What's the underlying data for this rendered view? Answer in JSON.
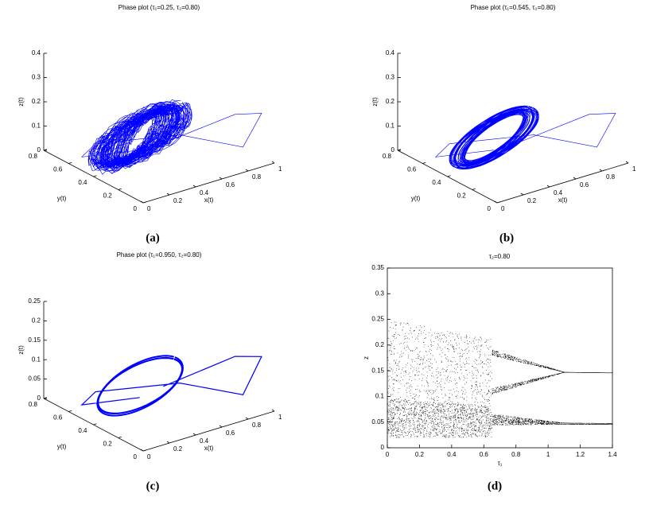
{
  "chart_data": [
    {
      "type": "phase3d",
      "title": "Phase plot (τ₁=0.25, τ₂=0.80)",
      "caption": "(a)",
      "xlabel": "x(t)",
      "ylabel": "y(t)",
      "zlabel": "z(t)",
      "color": "#0000ff",
      "xlim": [
        0,
        1
      ],
      "ylim": [
        0,
        0.8
      ],
      "zlim": [
        0,
        0.4
      ],
      "xticks": [
        0,
        0.2,
        0.4,
        0.6,
        0.8,
        1
      ],
      "yticks": [
        0,
        0.2,
        0.4,
        0.6,
        0.8
      ],
      "zticks": [
        0,
        0.1,
        0.2,
        0.3,
        0.4
      ]
    },
    {
      "type": "phase3d",
      "title": "Phase plot (τ₁=0.545, τ₂=0.80)",
      "caption": "(b)",
      "xlabel": "x(t)",
      "ylabel": "y(t)",
      "zlabel": "z(t)",
      "color": "#0000ff",
      "xlim": [
        0,
        1
      ],
      "ylim": [
        0,
        0.8
      ],
      "zlim": [
        0,
        0.4
      ],
      "xticks": [
        0,
        0.2,
        0.4,
        0.6,
        0.8,
        1
      ],
      "yticks": [
        0,
        0.2,
        0.4,
        0.6,
        0.8
      ],
      "zticks": [
        0,
        0.1,
        0.2,
        0.3,
        0.4
      ]
    },
    {
      "type": "phase3d",
      "title": "Phase plot (τ₁=0.950, τ₂=0.80)",
      "caption": "(c)",
      "xlabel": "x(t)",
      "ylabel": "y(t)",
      "zlabel": "z(t)",
      "color": "#0000ff",
      "xlim": [
        0,
        1
      ],
      "ylim": [
        0,
        0.8
      ],
      "zlim": [
        0,
        0.25
      ],
      "xticks": [
        0,
        0.2,
        0.4,
        0.6,
        0.8,
        1
      ],
      "yticks": [
        0,
        0.2,
        0.4,
        0.6,
        0.8
      ],
      "zticks": [
        0,
        0.05,
        0.1,
        0.15,
        0.2,
        0.25
      ]
    },
    {
      "type": "bifurcation",
      "title": "τ₂=0.80",
      "caption": "(d)",
      "xlabel": "τ₁",
      "ylabel": "z",
      "color": "#000000",
      "xlim": [
        0,
        1.4
      ],
      "ylim": [
        0,
        0.35
      ],
      "xticks": [
        0,
        0.2,
        0.4,
        0.6,
        0.8,
        1,
        1.2,
        1.4
      ],
      "yticks": [
        0,
        0.05,
        0.1,
        0.15,
        0.2,
        0.25,
        0.3,
        0.35
      ]
    }
  ]
}
